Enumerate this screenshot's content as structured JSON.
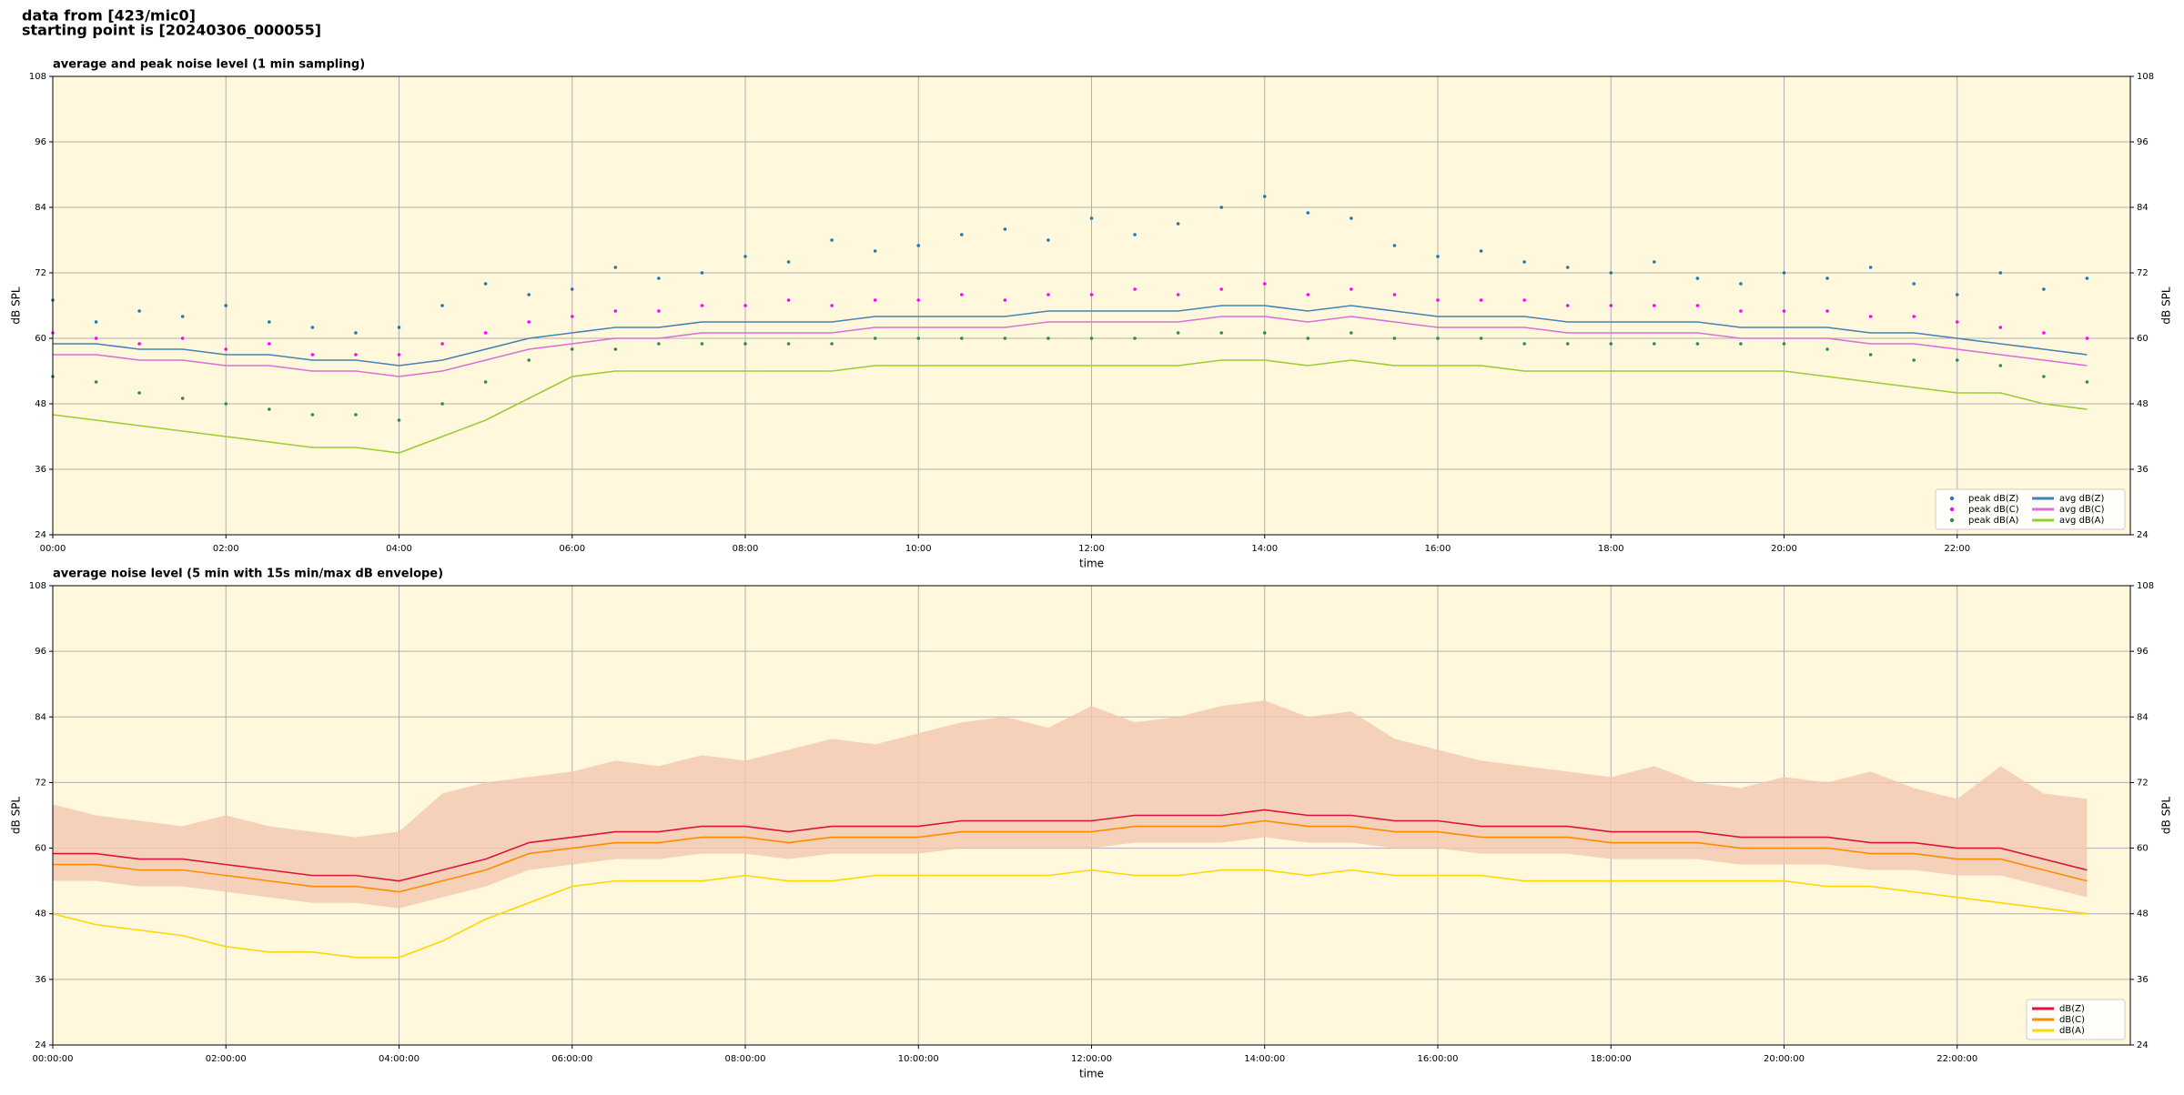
{
  "suptitle": [
    "data from [423/mic0]",
    "starting point is [20240306_000055]"
  ],
  "chart_data": [
    {
      "type": "line",
      "title": "average and peak noise level (1 min sampling)",
      "xlabel": "time",
      "ylabel": "dB SPL",
      "xlim": [
        0,
        24
      ],
      "ylim": [
        24,
        108
      ],
      "yticks": [
        24,
        36,
        48,
        60,
        72,
        84,
        96,
        108
      ],
      "xticks": [
        {
          "value": 0,
          "label": "00:00"
        },
        {
          "value": 2,
          "label": "02:00"
        },
        {
          "value": 4,
          "label": "04:00"
        },
        {
          "value": 6,
          "label": "06:00"
        },
        {
          "value": 8,
          "label": "08:00"
        },
        {
          "value": 10,
          "label": "10:00"
        },
        {
          "value": 12,
          "label": "12:00"
        },
        {
          "value": 14,
          "label": "14:00"
        },
        {
          "value": 16,
          "label": "16:00"
        },
        {
          "value": 18,
          "label": "18:00"
        },
        {
          "value": 20,
          "label": "20:00"
        },
        {
          "value": 22,
          "label": "22:00"
        }
      ],
      "grid": true,
      "legend": "lower right",
      "legend_columns": 2,
      "background": "#fff8dc",
      "x": [
        0,
        0.5,
        1,
        1.5,
        2,
        2.5,
        3,
        3.5,
        4,
        4.5,
        5,
        5.5,
        6,
        6.5,
        7,
        7.5,
        8,
        8.5,
        9,
        9.5,
        10,
        10.5,
        11,
        11.5,
        12,
        12.5,
        13,
        13.5,
        14,
        14.5,
        15,
        15.5,
        16,
        16.5,
        17,
        17.5,
        18,
        18.5,
        19,
        19.5,
        20,
        20.5,
        21,
        21.5,
        22,
        22.5,
        23,
        23.5
      ],
      "series": [
        {
          "name": "peak dB(Z)",
          "color": "#1f77b4",
          "style": "points",
          "values": [
            67,
            63,
            65,
            64,
            66,
            63,
            62,
            61,
            62,
            66,
            70,
            68,
            69,
            73,
            71,
            72,
            75,
            74,
            78,
            76,
            77,
            79,
            80,
            78,
            82,
            79,
            81,
            84,
            86,
            83,
            82,
            77,
            75,
            76,
            74,
            73,
            72,
            74,
            71,
            70,
            72,
            71,
            73,
            70,
            68,
            72,
            69,
            71
          ]
        },
        {
          "name": "peak dB(C)",
          "color": "#ff00ff",
          "style": "points",
          "values": [
            61,
            60,
            59,
            60,
            58,
            59,
            57,
            57,
            57,
            59,
            61,
            63,
            64,
            65,
            65,
            66,
            66,
            67,
            66,
            67,
            67,
            68,
            67,
            68,
            68,
            69,
            68,
            69,
            70,
            68,
            69,
            68,
            67,
            67,
            67,
            66,
            66,
            66,
            66,
            65,
            65,
            65,
            64,
            64,
            63,
            62,
            61,
            60
          ]
        },
        {
          "name": "peak dB(A)",
          "color": "#2e8b57",
          "style": "points",
          "values": [
            53,
            52,
            50,
            49,
            48,
            47,
            46,
            46,
            45,
            48,
            52,
            56,
            58,
            58,
            59,
            59,
            59,
            59,
            59,
            60,
            60,
            60,
            60,
            60,
            60,
            60,
            61,
            61,
            61,
            60,
            61,
            60,
            60,
            60,
            59,
            59,
            59,
            59,
            59,
            59,
            59,
            58,
            57,
            56,
            56,
            55,
            53,
            52
          ]
        },
        {
          "name": "avg dB(Z)",
          "color": "#4682b4",
          "style": "line",
          "values": [
            59,
            59,
            58,
            58,
            57,
            57,
            56,
            56,
            55,
            56,
            58,
            60,
            61,
            62,
            62,
            63,
            63,
            63,
            63,
            64,
            64,
            64,
            64,
            65,
            65,
            65,
            65,
            66,
            66,
            65,
            66,
            65,
            64,
            64,
            64,
            63,
            63,
            63,
            63,
            62,
            62,
            62,
            61,
            61,
            60,
            59,
            58,
            57
          ]
        },
        {
          "name": "avg dB(C)",
          "color": "#da70d6",
          "style": "line",
          "values": [
            57,
            57,
            56,
            56,
            55,
            55,
            54,
            54,
            53,
            54,
            56,
            58,
            59,
            60,
            60,
            61,
            61,
            61,
            61,
            62,
            62,
            62,
            62,
            63,
            63,
            63,
            63,
            64,
            64,
            63,
            64,
            63,
            62,
            62,
            62,
            61,
            61,
            61,
            61,
            60,
            60,
            60,
            59,
            59,
            58,
            57,
            56,
            55
          ]
        },
        {
          "name": "avg dB(A)",
          "color": "#9acd32",
          "style": "line",
          "values": [
            46,
            45,
            44,
            43,
            42,
            41,
            40,
            40,
            39,
            42,
            45,
            49,
            53,
            54,
            54,
            54,
            54,
            54,
            54,
            55,
            55,
            55,
            55,
            55,
            55,
            55,
            55,
            56,
            56,
            55,
            56,
            55,
            55,
            55,
            54,
            54,
            54,
            54,
            54,
            54,
            54,
            53,
            52,
            51,
            50,
            50,
            48,
            47
          ]
        }
      ]
    },
    {
      "type": "line",
      "title": "average noise level (5 min with 15s min/max dB envelope)",
      "xlabel": "time",
      "ylabel": "dB SPL",
      "xlim": [
        0,
        24
      ],
      "ylim": [
        24,
        108
      ],
      "yticks": [
        24,
        36,
        48,
        60,
        72,
        84,
        96,
        108
      ],
      "xticks": [
        {
          "value": 0,
          "label": "00:00:00"
        },
        {
          "value": 2,
          "label": "02:00:00"
        },
        {
          "value": 4,
          "label": "04:00:00"
        },
        {
          "value": 6,
          "label": "06:00:00"
        },
        {
          "value": 8,
          "label": "08:00:00"
        },
        {
          "value": 10,
          "label": "10:00:00"
        },
        {
          "value": 12,
          "label": "12:00:00"
        },
        {
          "value": 14,
          "label": "14:00:00"
        },
        {
          "value": 16,
          "label": "16:00:00"
        },
        {
          "value": 18,
          "label": "18:00:00"
        },
        {
          "value": 20,
          "label": "20:00:00"
        },
        {
          "value": 22,
          "label": "22:00:00"
        }
      ],
      "grid": true,
      "legend": "lower right",
      "legend_columns": 1,
      "background": "#fff8dc",
      "x": [
        0,
        0.5,
        1,
        1.5,
        2,
        2.5,
        3,
        3.5,
        4,
        4.5,
        5,
        5.5,
        6,
        6.5,
        7,
        7.5,
        8,
        8.5,
        9,
        9.5,
        10,
        10.5,
        11,
        11.5,
        12,
        12.5,
        13,
        13.5,
        14,
        14.5,
        15,
        15.5,
        16,
        16.5,
        17,
        17.5,
        18,
        18.5,
        19,
        19.5,
        20,
        20.5,
        21,
        21.5,
        22,
        22.5,
        23,
        23.5
      ],
      "envelope": {
        "color": "#f4c7b0",
        "low": [
          54,
          54,
          53,
          53,
          52,
          51,
          50,
          50,
          49,
          51,
          53,
          56,
          57,
          58,
          58,
          59,
          59,
          58,
          59,
          59,
          59,
          60,
          60,
          60,
          60,
          61,
          61,
          61,
          62,
          61,
          61,
          60,
          60,
          59,
          59,
          59,
          58,
          58,
          58,
          57,
          57,
          57,
          56,
          56,
          55,
          55,
          53,
          51
        ],
        "high": [
          68,
          66,
          65,
          64,
          66,
          64,
          63,
          62,
          63,
          70,
          72,
          73,
          74,
          76,
          75,
          77,
          76,
          78,
          80,
          79,
          81,
          83,
          84,
          82,
          86,
          83,
          84,
          86,
          87,
          84,
          85,
          80,
          78,
          76,
          75,
          74,
          73,
          75,
          72,
          71,
          73,
          72,
          74,
          71,
          69,
          75,
          70,
          69
        ]
      },
      "series": [
        {
          "name": "dB(Z)",
          "color": "#dc143c",
          "style": "line",
          "values": [
            59,
            59,
            58,
            58,
            57,
            56,
            55,
            55,
            54,
            56,
            58,
            61,
            62,
            63,
            63,
            64,
            64,
            63,
            64,
            64,
            64,
            65,
            65,
            65,
            65,
            66,
            66,
            66,
            67,
            66,
            66,
            65,
            65,
            64,
            64,
            64,
            63,
            63,
            63,
            62,
            62,
            62,
            61,
            61,
            60,
            60,
            58,
            56
          ]
        },
        {
          "name": "dB(C)",
          "color": "#ff8c00",
          "style": "line",
          "values": [
            57,
            57,
            56,
            56,
            55,
            54,
            53,
            53,
            52,
            54,
            56,
            59,
            60,
            61,
            61,
            62,
            62,
            61,
            62,
            62,
            62,
            63,
            63,
            63,
            63,
            64,
            64,
            64,
            65,
            64,
            64,
            63,
            63,
            62,
            62,
            62,
            61,
            61,
            61,
            60,
            60,
            60,
            59,
            59,
            58,
            58,
            56,
            54
          ]
        },
        {
          "name": "dB(A)",
          "color": "#ffd700",
          "style": "line",
          "values": [
            48,
            46,
            45,
            44,
            42,
            41,
            41,
            40,
            40,
            43,
            47,
            50,
            53,
            54,
            54,
            54,
            55,
            54,
            54,
            55,
            55,
            55,
            55,
            55,
            56,
            55,
            55,
            56,
            56,
            55,
            56,
            55,
            55,
            55,
            54,
            54,
            54,
            54,
            54,
            54,
            54,
            53,
            53,
            52,
            51,
            50,
            49,
            48
          ]
        }
      ]
    }
  ]
}
